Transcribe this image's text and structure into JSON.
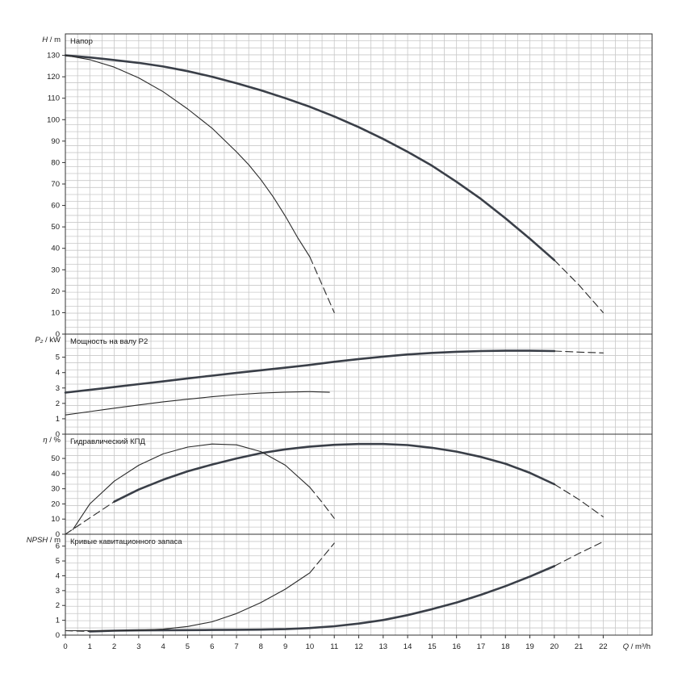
{
  "chart_data": [
    {
      "type": "line",
      "title": "Напор",
      "ylabel_sym": "H",
      "ylabel_unit": "m",
      "xlim": [
        0,
        24
      ],
      "ylim": [
        0,
        140
      ],
      "yticks": [
        0,
        10,
        20,
        30,
        40,
        50,
        60,
        70,
        80,
        90,
        100,
        110,
        120,
        130
      ],
      "grid": true,
      "series": [
        {
          "x": [
            0,
            1,
            2,
            3,
            4,
            5,
            6,
            7,
            8,
            9,
            10,
            11,
            12,
            13,
            14,
            15,
            16,
            17,
            18,
            19,
            20
          ],
          "y": [
            130,
            129,
            127.8,
            126.5,
            124.8,
            122.6,
            120,
            117,
            113.7,
            110,
            106,
            101.5,
            96.5,
            91,
            85,
            78.5,
            71,
            63,
            54,
            44.5,
            34.5
          ],
          "style": "bold"
        },
        {
          "x": [
            20,
            21,
            22
          ],
          "y": [
            34.5,
            23,
            10
          ],
          "style": "dashed"
        },
        {
          "x": [
            0,
            1,
            2,
            3,
            4,
            5,
            6,
            7,
            7.5,
            8,
            8.5,
            9,
            9.5,
            10
          ],
          "y": [
            130,
            128,
            124.5,
            119.5,
            113,
            105,
            96,
            85,
            79,
            72,
            64,
            55,
            45,
            36
          ],
          "style": "thin"
        },
        {
          "x": [
            10,
            10.5,
            11
          ],
          "y": [
            36,
            23,
            10
          ],
          "style": "dashed"
        }
      ]
    },
    {
      "type": "line",
      "title": "Мощность на валу P2",
      "ylabel_sym": "P₂",
      "ylabel_unit": "kW",
      "xlim": [
        0,
        24
      ],
      "ylim": [
        0,
        6.5
      ],
      "yticks": [
        0,
        1,
        2,
        3,
        4,
        5
      ],
      "grid": true,
      "series": [
        {
          "x": [
            0,
            1,
            2,
            3,
            4,
            5,
            6,
            7,
            8,
            9,
            10,
            11,
            12,
            13,
            14,
            15,
            16,
            17,
            18,
            19,
            20
          ],
          "y": [
            2.7,
            2.88,
            3.06,
            3.25,
            3.43,
            3.62,
            3.8,
            3.98,
            4.15,
            4.32,
            4.5,
            4.7,
            4.88,
            5.04,
            5.18,
            5.28,
            5.35,
            5.4,
            5.42,
            5.42,
            5.4
          ],
          "style": "bold"
        },
        {
          "x": [
            20,
            21,
            22
          ],
          "y": [
            5.4,
            5.33,
            5.28
          ],
          "style": "dashed"
        },
        {
          "x": [
            0,
            1,
            2,
            3,
            4,
            5,
            6,
            7,
            8,
            9,
            10,
            10.8
          ],
          "y": [
            1.25,
            1.47,
            1.69,
            1.9,
            2.1,
            2.27,
            2.43,
            2.57,
            2.67,
            2.73,
            2.76,
            2.72
          ],
          "style": "thin"
        }
      ]
    },
    {
      "type": "line",
      "title": "Гидравлический КПД",
      "ylabel_sym": "η",
      "ylabel_unit": "%",
      "xlim": [
        0,
        24
      ],
      "ylim": [
        0,
        66
      ],
      "yticks": [
        0,
        10,
        20,
        30,
        40,
        50
      ],
      "grid": true,
      "series": [
        {
          "x": [
            2,
            3,
            4,
            5,
            6,
            7,
            8,
            9,
            10,
            11,
            12,
            13,
            14,
            15,
            16,
            17,
            18,
            19,
            20
          ],
          "y": [
            21.5,
            29.5,
            36,
            41.5,
            46,
            50,
            53.5,
            56,
            57.8,
            59,
            59.5,
            59.5,
            58.8,
            57,
            54.5,
            51,
            46.5,
            40.5,
            33
          ],
          "style": "bold"
        },
        {
          "x": [
            0,
            2
          ],
          "y": [
            0,
            21.5
          ],
          "style": "dashed"
        },
        {
          "x": [
            20,
            21,
            22
          ],
          "y": [
            33,
            23,
            11.5
          ],
          "style": "dashed"
        },
        {
          "x": [
            0.3,
            1,
            2,
            3,
            4,
            5,
            6,
            7,
            8,
            9,
            10
          ],
          "y": [
            3,
            20,
            35,
            45.5,
            53,
            57.5,
            59.5,
            59,
            54.5,
            45.5,
            31
          ],
          "style": "thin"
        },
        {
          "x": [
            10,
            10.5,
            11
          ],
          "y": [
            31,
            21,
            10.5
          ],
          "style": "dashed"
        }
      ]
    },
    {
      "type": "line",
      "title": "Кривые кавитационного запаса",
      "ylabel_sym": "NPSH",
      "ylabel_unit": "m",
      "xlim": [
        0,
        24
      ],
      "ylim": [
        0,
        6.8
      ],
      "yticks": [
        0,
        1,
        2,
        3,
        4,
        5,
        6
      ],
      "xticks": [
        0,
        1,
        2,
        3,
        4,
        5,
        6,
        7,
        8,
        9,
        10,
        11,
        12,
        13,
        14,
        15,
        16,
        17,
        18,
        19,
        20,
        21,
        22
      ],
      "xlabel_sym": "Q",
      "xlabel_unit": "m³/h",
      "grid": true,
      "series": [
        {
          "x": [
            0,
            1
          ],
          "y": [
            0.3,
            0.25
          ],
          "style": "dashed"
        },
        {
          "x": [
            1,
            2,
            3,
            4,
            5,
            6,
            7,
            8,
            9,
            10,
            11,
            12,
            13,
            14,
            15,
            16,
            17,
            18,
            19,
            20
          ],
          "y": [
            0.25,
            0.3,
            0.32,
            0.33,
            0.34,
            0.35,
            0.36,
            0.37,
            0.4,
            0.48,
            0.6,
            0.78,
            1.02,
            1.35,
            1.75,
            2.2,
            2.72,
            3.3,
            3.95,
            4.65
          ],
          "style": "bold"
        },
        {
          "x": [
            20,
            21,
            22
          ],
          "y": [
            4.65,
            5.5,
            6.3
          ],
          "style": "dashed"
        },
        {
          "x": [
            0,
            1,
            2,
            3,
            4,
            5,
            6,
            7,
            8,
            9,
            10
          ],
          "y": [
            0.3,
            0.3,
            0.3,
            0.33,
            0.4,
            0.58,
            0.9,
            1.45,
            2.2,
            3.1,
            4.2
          ],
          "style": "thin"
        },
        {
          "x": [
            10,
            10.5,
            11
          ],
          "y": [
            4.2,
            5.2,
            6.2
          ],
          "style": "dashed"
        }
      ]
    }
  ]
}
